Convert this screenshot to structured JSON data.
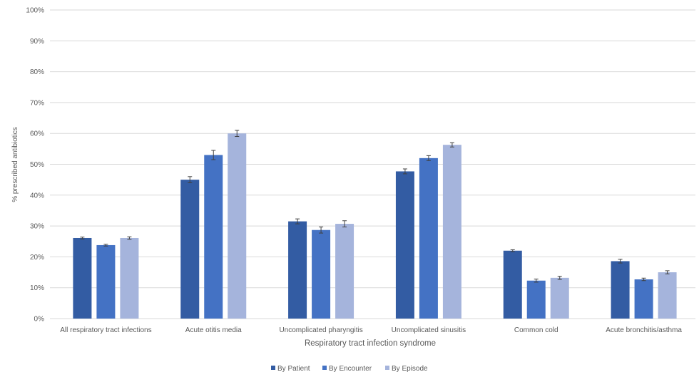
{
  "chart_data": {
    "type": "bar",
    "title": "",
    "xlabel": "Respiratory tract infection syndrome",
    "ylabel": "% prescribed antibiotics",
    "ylim": [
      0,
      100
    ],
    "yticks": [
      "0%",
      "10%",
      "20%",
      "30%",
      "40%",
      "50%",
      "60%",
      "70%",
      "80%",
      "90%",
      "100%"
    ],
    "grid": true,
    "legend_position": "bottom",
    "categories": [
      "All respiratory tract infections",
      "Acute otitis media",
      "Uncomplicated pharyngitis",
      "Uncomplicated sinusitis",
      "Common cold",
      "Acute bronchitis/asthma"
    ],
    "series": [
      {
        "name": "By Patient",
        "color": "#335ca3",
        "values": [
          26.1,
          45.0,
          31.5,
          47.7,
          22.0,
          18.6
        ],
        "errors": [
          0.3,
          1.0,
          0.8,
          0.8,
          0.3,
          0.6
        ]
      },
      {
        "name": "By Encounter",
        "color": "#4472c4",
        "values": [
          23.8,
          53.0,
          28.7,
          52.0,
          12.3,
          12.7
        ],
        "errors": [
          0.3,
          1.5,
          1.0,
          0.8,
          0.5,
          0.4
        ]
      },
      {
        "name": "By Episode",
        "color": "#a5b4dc",
        "values": [
          26.1,
          60.0,
          30.7,
          56.3,
          13.2,
          15.0
        ],
        "errors": [
          0.4,
          1.0,
          1.0,
          0.7,
          0.5,
          0.5
        ]
      }
    ]
  }
}
